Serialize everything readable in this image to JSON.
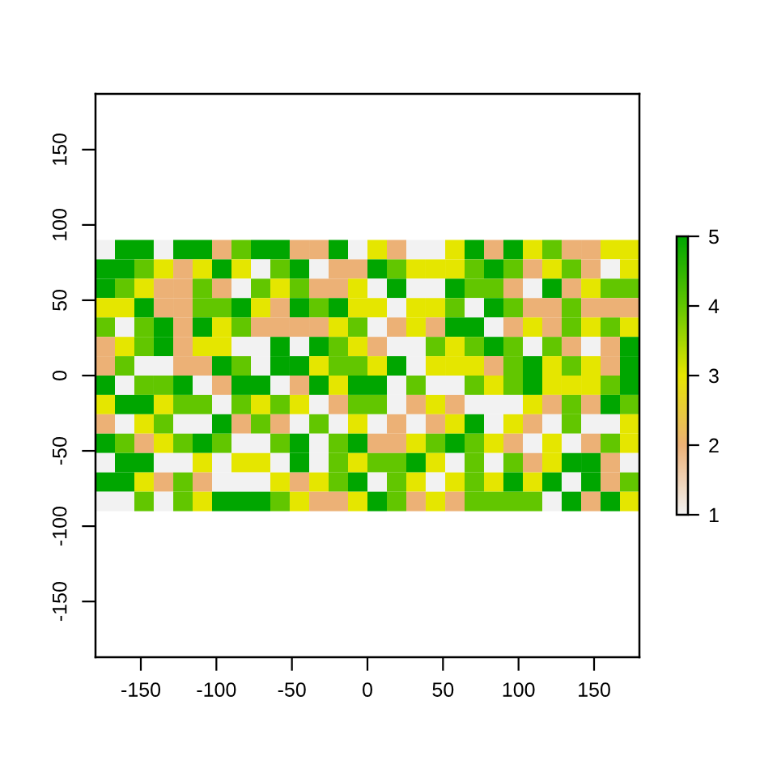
{
  "chart_data": {
    "type": "heatmap",
    "x": [
      -173.6,
      -160.7,
      -147.9,
      -135.0,
      -122.1,
      -109.3,
      -96.4,
      -83.6,
      -70.7,
      -57.9,
      -45.0,
      -32.1,
      -19.3,
      -6.4,
      6.4,
      19.3,
      32.1,
      45.0,
      57.9,
      70.7,
      83.6,
      96.4,
      109.3,
      122.1,
      135.0,
      147.9,
      160.7,
      173.6
    ],
    "y": [
      83.6,
      70.7,
      57.9,
      45.0,
      32.1,
      19.3,
      6.4,
      -6.4,
      -19.3,
      -32.1,
      -45.0,
      -57.9,
      -70.7,
      -83.6
    ],
    "cells": [
      [
        1,
        5,
        5,
        1,
        5,
        5,
        2,
        4,
        5,
        5,
        2,
        2,
        5,
        1,
        3,
        2,
        1,
        1,
        3,
        5,
        2,
        5,
        3,
        4,
        2,
        2,
        3,
        3
      ],
      [
        5,
        5,
        4,
        3,
        2,
        3,
        5,
        3,
        1,
        4,
        5,
        1,
        2,
        2,
        5,
        4,
        3,
        3,
        3,
        4,
        5,
        4,
        2,
        3,
        4,
        2,
        1,
        3
      ],
      [
        5,
        4,
        3,
        2,
        2,
        4,
        2,
        1,
        4,
        3,
        4,
        2,
        2,
        3,
        1,
        5,
        1,
        1,
        5,
        4,
        4,
        2,
        1,
        5,
        2,
        3,
        4,
        4
      ],
      [
        3,
        3,
        5,
        2,
        2,
        4,
        4,
        5,
        3,
        2,
        5,
        4,
        5,
        3,
        3,
        1,
        3,
        3,
        4,
        1,
        5,
        4,
        2,
        2,
        4,
        2,
        2,
        2
      ],
      [
        4,
        1,
        4,
        5,
        2,
        5,
        3,
        4,
        2,
        2,
        2,
        2,
        3,
        4,
        1,
        2,
        3,
        2,
        5,
        5,
        1,
        2,
        3,
        2,
        4,
        3,
        4,
        3
      ],
      [
        2,
        3,
        4,
        5,
        2,
        3,
        3,
        1,
        1,
        5,
        1,
        5,
        4,
        3,
        2,
        1,
        1,
        4,
        3,
        4,
        5,
        4,
        1,
        4,
        2,
        1,
        2,
        5
      ],
      [
        2,
        4,
        1,
        1,
        2,
        2,
        5,
        4,
        1,
        5,
        5,
        3,
        4,
        4,
        3,
        5,
        1,
        3,
        3,
        3,
        2,
        4,
        5,
        3,
        4,
        3,
        2,
        5
      ],
      [
        5,
        1,
        4,
        4,
        5,
        1,
        2,
        5,
        5,
        1,
        2,
        5,
        3,
        5,
        5,
        1,
        4,
        1,
        1,
        4,
        3,
        4,
        5,
        3,
        3,
        3,
        4,
        5
      ],
      [
        3,
        5,
        5,
        3,
        4,
        4,
        1,
        4,
        3,
        4,
        3,
        1,
        2,
        4,
        4,
        1,
        2,
        3,
        2,
        1,
        1,
        1,
        3,
        2,
        4,
        2,
        5,
        4
      ],
      [
        2,
        1,
        3,
        4,
        1,
        1,
        5,
        2,
        4,
        2,
        1,
        4,
        1,
        3,
        1,
        2,
        1,
        2,
        3,
        5,
        1,
        3,
        2,
        1,
        4,
        1,
        1,
        3
      ],
      [
        5,
        4,
        2,
        3,
        4,
        5,
        4,
        1,
        1,
        4,
        5,
        1,
        4,
        5,
        2,
        2,
        3,
        4,
        5,
        4,
        3,
        2,
        1,
        3,
        1,
        2,
        4,
        3
      ],
      [
        1,
        5,
        5,
        1,
        1,
        3,
        1,
        3,
        3,
        1,
        5,
        1,
        4,
        3,
        4,
        4,
        5,
        3,
        1,
        4,
        1,
        4,
        2,
        3,
        5,
        5,
        2,
        1
      ],
      [
        5,
        5,
        3,
        2,
        4,
        2,
        1,
        1,
        1,
        3,
        2,
        3,
        4,
        5,
        1,
        4,
        3,
        1,
        3,
        4,
        3,
        5,
        3,
        5,
        1,
        5,
        2,
        4
      ],
      [
        1,
        1,
        4,
        1,
        4,
        3,
        5,
        5,
        5,
        4,
        3,
        2,
        2,
        3,
        5,
        4,
        2,
        3,
        2,
        4,
        4,
        4,
        4,
        1,
        5,
        2,
        5,
        3
      ]
    ],
    "colors": [
      "#f2f2f2",
      "#ecb176",
      "#e6e600",
      "#63c600",
      "#00a600"
    ],
    "clim": [
      1,
      5
    ],
    "cticks": [
      1,
      2,
      3,
      4,
      5
    ],
    "xlim": [
      -180,
      180
    ],
    "xticks": [
      -150,
      -100,
      -50,
      0,
      50,
      100,
      150
    ],
    "ylim": [
      -187,
      187
    ],
    "yticks": [
      -150,
      -100,
      -50,
      0,
      50,
      100,
      150
    ]
  }
}
